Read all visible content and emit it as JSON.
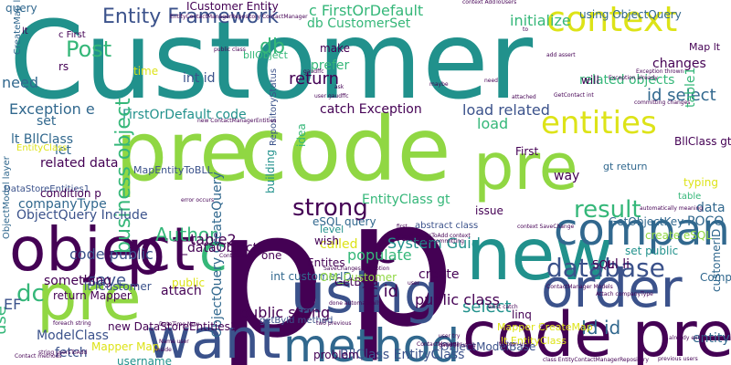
{
  "canvas": {
    "background": "#ffffff"
  },
  "palette": {
    "dark_purple": "#440154",
    "indigo": "#3b528b",
    "blue": "#31688e",
    "teal": "#21918c",
    "green": "#35b779",
    "lime": "#90d743",
    "yellow": "#dde318"
  },
  "words": [
    {
      "text": "Customer",
      "color": "#21918c"
    },
    {
      "text": "p",
      "color": "#440154"
    },
    {
      "text": "p",
      "color": "#440154"
    },
    {
      "text": "code",
      "color": "#90d743"
    },
    {
      "text": "pre",
      "color": "#90d743"
    },
    {
      "text": "pre",
      "color": "#90d743"
    },
    {
      "text": "pre",
      "color": "#90d743"
    },
    {
      "text": "code pre",
      "color": "#440154"
    },
    {
      "text": "new",
      "color": "#21918c"
    },
    {
      "text": "object",
      "color": "#440154"
    },
    {
      "text": "company",
      "color": "#31688e"
    },
    {
      "text": "order",
      "color": "#3b528b"
    },
    {
      "text": "using",
      "color": "#3b528b"
    },
    {
      "text": "want",
      "color": "#3b528b"
    },
    {
      "text": "method",
      "color": "#31688e"
    },
    {
      "text": "context",
      "color": "#dde318"
    },
    {
      "text": "entities",
      "color": "#dde318"
    },
    {
      "text": "c",
      "color": "#35b779"
    },
    {
      "text": "c",
      "color": "#440154"
    },
    {
      "text": "p",
      "color": "#440154"
    },
    {
      "text": "Entity Framework",
      "color": "#3b528b"
    },
    {
      "text": "database",
      "color": "#3b528b"
    },
    {
      "text": "result",
      "color": "#35b779"
    },
    {
      "text": "strong",
      "color": "#440154"
    },
    {
      "text": "id select",
      "color": "#31688e"
    },
    {
      "text": "Post",
      "color": "#35b779"
    },
    {
      "text": "db",
      "color": "#35b779"
    },
    {
      "text": "db CustomerSet",
      "color": "#35b779"
    },
    {
      "text": "c FirstOrDefault",
      "color": "#35b779"
    },
    {
      "text": "initialize",
      "color": "#35b779"
    },
    {
      "text": "FirstOrDefault code",
      "color": "#21918c"
    },
    {
      "text": "code public",
      "color": "#3b528b"
    },
    {
      "text": "save",
      "color": "#3b528b"
    },
    {
      "text": "dc",
      "color": "#35b779"
    },
    {
      "text": "Author",
      "color": "#35b779"
    },
    {
      "text": "business object",
      "color": "#35b779"
    },
    {
      "text": "Id id",
      "color": "#31688e"
    },
    {
      "text": "entity",
      "color": "#31688e"
    },
    {
      "text": "select",
      "color": "#21918c"
    },
    {
      "text": "populate",
      "color": "#35b779"
    },
    {
      "text": "ul li",
      "color": "#440154"
    },
    {
      "text": "SQL",
      "color": "#440154"
    },
    {
      "text": "data",
      "color": "#31688e"
    },
    {
      "text": "POCO",
      "color": "#31688e"
    },
    {
      "text": "changes",
      "color": "#440154"
    },
    {
      "text": "table1",
      "color": "#35b779"
    },
    {
      "text": "return",
      "color": "#440154"
    },
    {
      "text": "prefer",
      "color": "#35b779"
    },
    {
      "text": "load related",
      "color": "#3b528b"
    },
    {
      "text": "load",
      "color": "#35b779"
    },
    {
      "text": "related objects",
      "color": "#35b779"
    },
    {
      "text": "related data",
      "color": "#440154"
    },
    {
      "text": "companyType",
      "color": "#31688e"
    },
    {
      "text": "ObjectQuery Include",
      "color": "#3b528b"
    },
    {
      "text": "table2",
      "color": "#440154"
    },
    {
      "text": "public class",
      "color": "#440154"
    },
    {
      "text": "public string",
      "color": "#440154"
    },
    {
      "text": "ObjectQuery CreateQuery",
      "color": "#31688e"
    },
    {
      "text": "BllClass EntityClass",
      "color": "#3b528b"
    },
    {
      "text": "ObjectModelBase",
      "color": "#3b528b"
    },
    {
      "text": "ModelClass",
      "color": "#3b528b"
    },
    {
      "text": "fetch",
      "color": "#3b528b"
    },
    {
      "text": "using ObjectQuery",
      "color": "#31688e"
    },
    {
      "text": "int id",
      "color": "#3b528b"
    },
    {
      "text": "need",
      "color": "#31688e"
    },
    {
      "text": "set",
      "color": "#31688e"
    },
    {
      "text": "lt BllClass",
      "color": "#31688e"
    },
    {
      "text": "let",
      "color": "#31688e"
    },
    {
      "text": "Exception e",
      "color": "#31688e"
    },
    {
      "text": "catch Exception",
      "color": "#440154"
    },
    {
      "text": "EntityClass gt",
      "color": "#35b779"
    },
    {
      "text": "eSQL query",
      "color": "#31688e"
    },
    {
      "text": "called",
      "color": "#dde318"
    },
    {
      "text": "create",
      "color": "#440154"
    },
    {
      "text": "System Guid",
      "color": "#21918c"
    },
    {
      "text": "something",
      "color": "#440154"
    },
    {
      "text": "use",
      "color": "#35b779"
    },
    {
      "text": "EF",
      "color": "#3b528b"
    },
    {
      "text": "attach",
      "color": "#440154"
    },
    {
      "text": "problem",
      "color": "#440154"
    },
    {
      "text": "username",
      "color": "#21918c"
    },
    {
      "text": "Entites",
      "color": "#440154"
    },
    {
      "text": "c id",
      "color": "#440154"
    },
    {
      "text": "GetById",
      "color": "#440154"
    },
    {
      "text": "lt ICustomer",
      "color": "#3b528b"
    },
    {
      "text": "return Mapper",
      "color": "#440154"
    },
    {
      "text": "int customerID",
      "color": "#31688e"
    },
    {
      "text": "OM_Customer",
      "color": "#90d743"
    },
    {
      "text": "new DataStoreEntities1",
      "color": "#440154"
    },
    {
      "text": "linq",
      "color": "#440154"
    },
    {
      "text": "way",
      "color": "#440154"
    },
    {
      "text": "Mapper Map",
      "color": "#dde318"
    },
    {
      "text": "abstract class",
      "color": "#3b528b"
    },
    {
      "text": "issue",
      "color": "#440154"
    },
    {
      "text": "table",
      "color": "#35b779"
    },
    {
      "text": "First",
      "color": "#440154"
    },
    {
      "text": "typing",
      "color": "#dde318"
    },
    {
      "text": "GetObjectKey",
      "color": "#31688e"
    },
    {
      "text": "customerID",
      "color": "#31688e"
    },
    {
      "text": "CompanyID",
      "color": "#31688e"
    },
    {
      "text": "set public",
      "color": "#21918c"
    },
    {
      "text": "create eSQL",
      "color": "#90d743"
    },
    {
      "text": "ICustomer Entity",
      "color": "#440154"
    },
    {
      "text": "query",
      "color": "#31688e"
    },
    {
      "text": "rs",
      "color": "#440154"
    },
    {
      "text": "time",
      "color": "#dde318"
    },
    {
      "text": "MapEntityToBLL",
      "color": "#3b528b"
    },
    {
      "text": "DataStoreEntities1",
      "color": "#3b528b"
    },
    {
      "text": "_dataObject",
      "color": "#440154"
    },
    {
      "text": "var",
      "color": "#440154"
    },
    {
      "text": "one",
      "color": "#440154"
    },
    {
      "text": "wish",
      "color": "#440154"
    },
    {
      "text": "level",
      "color": "#21918c"
    },
    {
      "text": "building",
      "color": "#21918c"
    },
    {
      "text": "RepositoryStatus",
      "color": "#3b528b"
    },
    {
      "text": "idea",
      "color": "#35b779"
    },
    {
      "text": "make",
      "color": "#440154"
    },
    {
      "text": "will",
      "color": "#440154"
    },
    {
      "text": "BllClass gt",
      "color": "#440154"
    },
    {
      "text": "condition p",
      "color": "#440154"
    },
    {
      "text": "gt return",
      "color": "#31688e"
    },
    {
      "text": "Map lt",
      "color": "#440154"
    },
    {
      "text": "ObjectModel layer",
      "color": "#31688e"
    },
    {
      "text": "bllObject",
      "color": "#35b779"
    },
    {
      "text": "EntityClass",
      "color": "#dde318"
    },
    {
      "text": "public",
      "color": "#dde318"
    },
    {
      "text": "c First",
      "color": "#440154"
    },
    {
      "text": "lt",
      "color": "#440154"
    },
    {
      "text": "getById method",
      "color": "#3b528b"
    },
    {
      "text": "lt EntityClass",
      "color": "#dde318"
    },
    {
      "text": "context AddToUsers",
      "color": "#440154"
    },
    {
      "text": "add assert",
      "color": "#440154"
    },
    {
      "text": "Exception thrown",
      "color": "#440154"
    },
    {
      "text": "SaveChanges Exception",
      "color": "#440154"
    },
    {
      "text": "exist catch",
      "color": "#440154"
    },
    {
      "text": "done automatically",
      "color": "#440154"
    },
    {
      "text": "already exist",
      "color": "#440154"
    },
    {
      "text": "user",
      "color": "#440154"
    },
    {
      "text": "users",
      "color": "#440154"
    },
    {
      "text": "Name user",
      "color": "#440154"
    },
    {
      "text": "DateTime Now",
      "color": "#440154"
    },
    {
      "text": "GetContact int",
      "color": "#440154"
    },
    {
      "text": "error occurs",
      "color": "#440154"
    },
    {
      "text": "string usersToAdd",
      "color": "#440154"
    },
    {
      "text": "Contact methods",
      "color": "#440154"
    },
    {
      "text": "inside",
      "color": "#440154"
    },
    {
      "text": "first",
      "color": "#440154"
    },
    {
      "text": "two previous",
      "color": "#440154"
    },
    {
      "text": "class EntityContactManagerRepository",
      "color": "#440154"
    },
    {
      "text": "EntityContactManagerRepository ContactManager",
      "color": "#440154"
    },
    {
      "text": "Attach companyType",
      "color": "#440154"
    },
    {
      "text": "previous users",
      "color": "#440154"
    },
    {
      "text": "committing changes",
      "color": "#440154"
    },
    {
      "text": "ContactManager",
      "color": "#440154"
    },
    {
      "text": "gaudffc",
      "color": "#440154"
    },
    {
      "text": "gaudffc using",
      "color": "#440154"
    },
    {
      "text": "attached",
      "color": "#440154"
    },
    {
      "text": "automatically meaning",
      "color": "#440154"
    },
    {
      "text": "CreateMap lt",
      "color": "#31688e"
    },
    {
      "text": "Mapper CreateMap",
      "color": "#dde318"
    },
    {
      "text": "ContactSave",
      "color": "#440154"
    },
    {
      "text": "maybe",
      "color": "#440154"
    },
    {
      "text": "foreach string",
      "color": "#440154"
    },
    {
      "text": "context SaveChange",
      "color": "#440154"
    },
    {
      "text": "usersToAdd context",
      "color": "#440154"
    },
    {
      "text": "occurs committing",
      "color": "#440154"
    },
    {
      "text": "new ContactManagerEntities",
      "color": "#440154"
    },
    {
      "text": "user gaudffc",
      "color": "#440154"
    },
    {
      "text": "Exception already",
      "color": "#440154"
    },
    {
      "text": "public class",
      "color": "#440154"
    },
    {
      "text": "ask",
      "color": "#440154"
    },
    {
      "text": "ContactManager Models",
      "color": "#440154"
    },
    {
      "text": "thrown user",
      "color": "#440154"
    },
    {
      "text": "user try",
      "color": "#440154"
    },
    {
      "text": "to",
      "color": "#440154"
    },
    {
      "text": "need",
      "color": "#440154"
    }
  ]
}
